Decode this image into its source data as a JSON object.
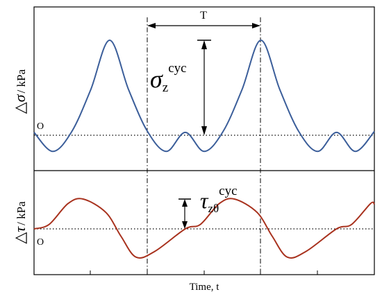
{
  "chart_data": [
    {
      "type": "line",
      "panel": "top",
      "ylabel_symbol": "△σ",
      "ylabel_unit": "/ kPa",
      "origin_label": "O",
      "period_label": "T",
      "amplitude_symbol": "σ",
      "amplitude_subscript": "z",
      "amplitude_superscript": "cyc",
      "xlim": [
        0,
        4.5
      ],
      "ylim": [
        -0.32,
        1.35
      ],
      "baseline": 0,
      "period_marker": [
        2,
        4
      ],
      "amplitude_marker_x": 3,
      "series": [
        {
          "color": "#3B5E9A",
          "x": [
            0,
            0.25,
            0.5,
            0.75,
            1,
            1.25,
            1.5,
            1.75,
            2,
            2.25,
            2.5,
            2.75,
            3,
            3.25,
            3.5,
            3.75,
            4,
            4.25,
            4.5
          ],
          "y": [
            0.03,
            -0.17,
            0.04,
            0.48,
            1.0,
            0.48,
            0.04,
            -0.17,
            0.03,
            -0.17,
            0.04,
            0.48,
            1.0,
            0.48,
            0.04,
            -0.17,
            0.03,
            -0.17,
            0.04
          ]
        }
      ]
    },
    {
      "type": "line",
      "panel": "bottom",
      "ylabel_symbol": "△τ",
      "ylabel_unit": "/ kPa",
      "origin_label": "O",
      "xlabel": "Time, t",
      "amplitude_symbol": "τ",
      "amplitude_subscript": "zθ",
      "amplitude_superscript": "cyc",
      "xlim": [
        0,
        4.5
      ],
      "ylim": [
        -1.35,
        1.35
      ],
      "baseline": 0,
      "amplitude_marker_x": 2.65,
      "series": [
        {
          "color": "#A8321E",
          "x": [
            0,
            0.2,
            0.45,
            0.65,
            0.95,
            1.15,
            1.35,
            1.6,
            2,
            2.2,
            2.45,
            2.65,
            2.95,
            3.15,
            3.35,
            3.6,
            4,
            4.2,
            4.45,
            4.5
          ],
          "y": [
            0,
            0.15,
            0.85,
            1.0,
            0.55,
            -0.25,
            -0.95,
            -0.75,
            0,
            0.15,
            0.85,
            1.0,
            0.55,
            -0.25,
            -0.95,
            -0.75,
            0,
            0.15,
            0.85,
            0.82
          ]
        }
      ]
    }
  ]
}
